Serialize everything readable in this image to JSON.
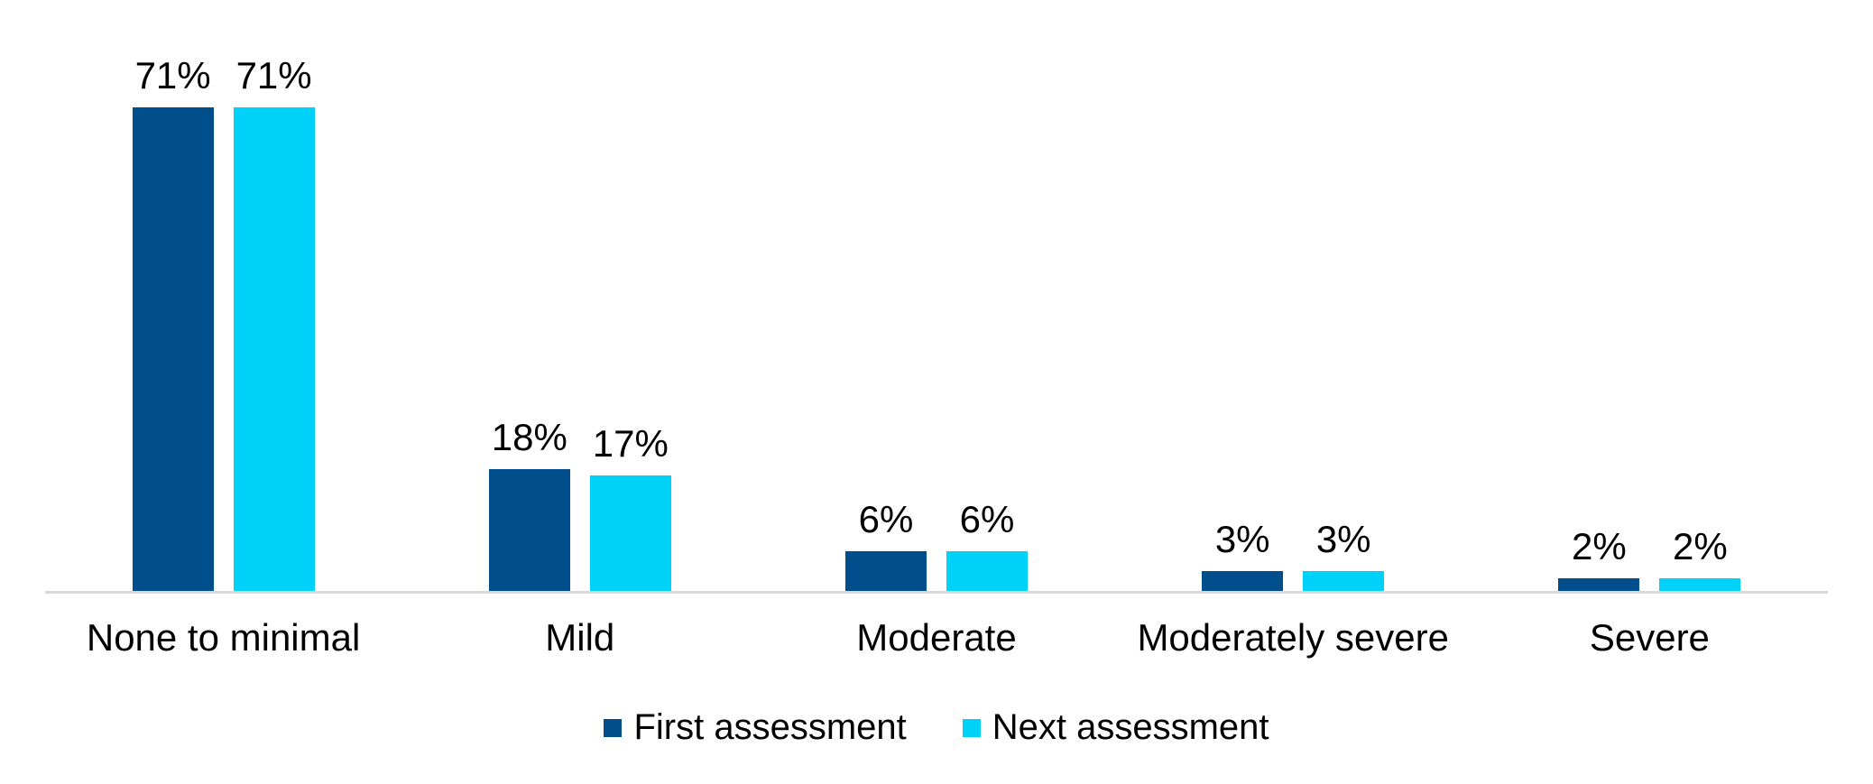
{
  "chart_data": {
    "type": "bar",
    "title": "",
    "xlabel": "",
    "ylabel": "",
    "categories": [
      "None to minimal",
      "Mild",
      "Moderate",
      "Moderately severe",
      "Severe"
    ],
    "series": [
      {
        "name": "First assessment",
        "color": "#004E8C",
        "values": [
          71,
          18,
          6,
          3,
          2
        ],
        "labels": [
          "71%",
          "18%",
          "6%",
          "3%",
          "2%"
        ]
      },
      {
        "name": "Next assessment",
        "color": "#00D1F9",
        "values": [
          71,
          17,
          6,
          3,
          2
        ],
        "labels": [
          "71%",
          "17%",
          "6%",
          "3%",
          "2%"
        ]
      }
    ],
    "value_format": "percent",
    "ylim": [
      0,
      80
    ],
    "grid": false,
    "legend_position": "bottom",
    "axis_line_color": "#D9D9D9",
    "text_color": "#000000"
  },
  "layout_meta": {
    "note": ""
  }
}
